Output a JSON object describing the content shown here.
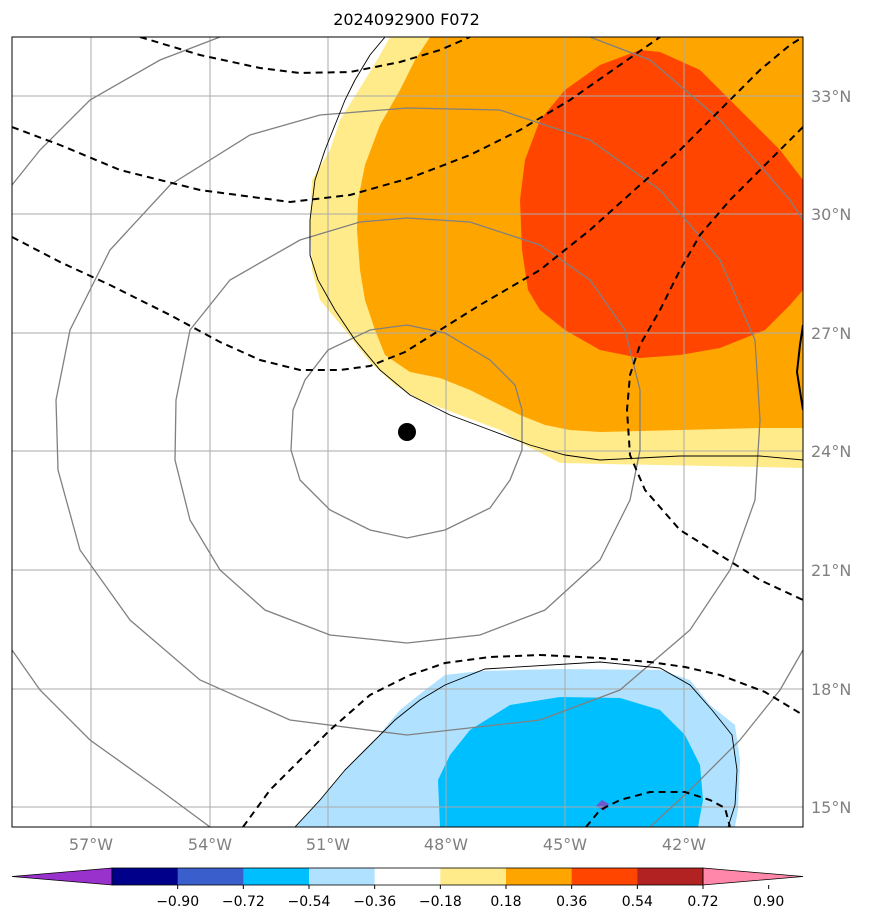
{
  "title": "2024092900 F072",
  "lat_labels": [
    "33°N",
    "30°N",
    "27°N",
    "24°N",
    "21°N",
    "18°N",
    "15°N"
  ],
  "lon_labels": [
    "57°W",
    "54°W",
    "51°W",
    "48°W",
    "45°W",
    "42°W"
  ],
  "colorbar": {
    "ticks": [
      "−0.90",
      "−0.72",
      "−0.54",
      "−0.36",
      "−0.18",
      "0.18",
      "0.36",
      "0.54",
      "0.72",
      "0.90"
    ],
    "colors": [
      "#9932cc",
      "#00008b",
      "#3a5fcd",
      "#00bfff",
      "#b0e2ff",
      "#ffffff",
      "#ffeb8a",
      "#ffa500",
      "#ff4500",
      "#b22222",
      "#ff88aa"
    ]
  },
  "storm_center": {
    "lon": "49°W",
    "lat": "24.5°N"
  },
  "colors": {
    "grid": "#aaaaaa",
    "contour_gray": "#808080",
    "dashed": "#000000"
  }
}
